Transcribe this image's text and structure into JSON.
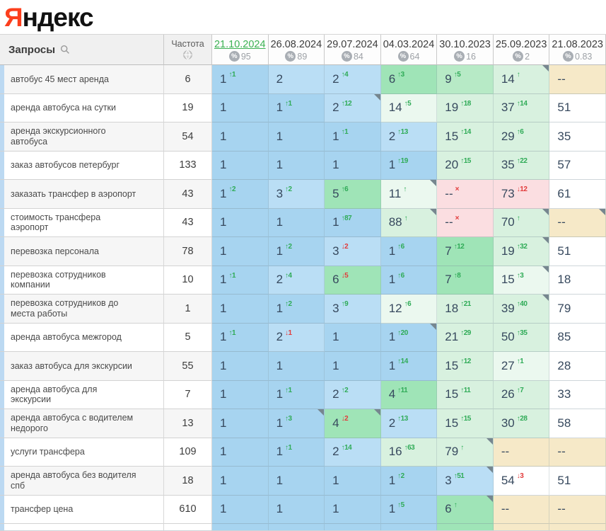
{
  "logo": {
    "first_letter": "Я",
    "rest": "ндекс"
  },
  "table": {
    "queries_header": "Запросы",
    "frequency_header": "Частота",
    "dates": [
      {
        "label": "21.10.2024",
        "percent": "95",
        "selected": true
      },
      {
        "label": "26.08.2024",
        "percent": "89",
        "selected": false
      },
      {
        "label": "29.07.2024",
        "percent": "84",
        "selected": false
      },
      {
        "label": "04.03.2024",
        "percent": "64",
        "selected": false
      },
      {
        "label": "30.10.2023",
        "percent": "16",
        "selected": false
      },
      {
        "label": "25.09.2023",
        "percent": "2",
        "selected": false
      },
      {
        "label": "21.08.2023",
        "percent": "0.83",
        "selected": false
      }
    ],
    "rows": [
      {
        "query": "автобус 45 мест аренда",
        "frequency": "6",
        "cells": [
          {
            "v": "1",
            "d": "↑1",
            "c": "up",
            "bg": "b1"
          },
          {
            "v": "2",
            "bg": "b2"
          },
          {
            "v": "2",
            "d": "↑4",
            "c": "up",
            "bg": "b2"
          },
          {
            "v": "6",
            "d": "↑3",
            "c": "up",
            "bg": "g1"
          },
          {
            "v": "9",
            "d": "↑5",
            "c": "up",
            "bg": "g2"
          },
          {
            "v": "14",
            "d": "↑",
            "c": "up",
            "bg": "g3",
            "f": 1
          },
          {
            "v": "--",
            "bg": "tan"
          }
        ]
      },
      {
        "query": "аренда автобуса на сутки",
        "frequency": "19",
        "cells": [
          {
            "v": "1",
            "bg": "b1"
          },
          {
            "v": "1",
            "d": "↑1",
            "c": "up",
            "bg": "b1"
          },
          {
            "v": "2",
            "d": "↑12",
            "c": "up",
            "bg": "b2",
            "f": 1
          },
          {
            "v": "14",
            "d": "↑5",
            "c": "up",
            "bg": "g4"
          },
          {
            "v": "19",
            "d": "↑18",
            "c": "up",
            "bg": "g3"
          },
          {
            "v": "37",
            "d": "↑14",
            "c": "up",
            "bg": "g3"
          },
          {
            "v": "51",
            "bg": "white"
          }
        ]
      },
      {
        "query": "аренда экскурсионного автобуса",
        "frequency": "54",
        "cells": [
          {
            "v": "1",
            "bg": "b1"
          },
          {
            "v": "1",
            "bg": "b1"
          },
          {
            "v": "1",
            "d": "↑1",
            "c": "up",
            "bg": "b1"
          },
          {
            "v": "2",
            "d": "↑13",
            "c": "up",
            "bg": "b2"
          },
          {
            "v": "15",
            "d": "↑14",
            "c": "up",
            "bg": "g3"
          },
          {
            "v": "29",
            "d": "↑6",
            "c": "up",
            "bg": "g3"
          },
          {
            "v": "35",
            "bg": "white"
          }
        ]
      },
      {
        "query": "заказ автобусов петербург",
        "frequency": "133",
        "cells": [
          {
            "v": "1",
            "bg": "b1"
          },
          {
            "v": "1",
            "bg": "b1"
          },
          {
            "v": "1",
            "bg": "b1"
          },
          {
            "v": "1",
            "d": "↑19",
            "c": "up",
            "bg": "b1"
          },
          {
            "v": "20",
            "d": "↑15",
            "c": "up",
            "bg": "g3"
          },
          {
            "v": "35",
            "d": "↑22",
            "c": "up",
            "bg": "g3"
          },
          {
            "v": "57",
            "bg": "white"
          }
        ]
      },
      {
        "query": "заказать трансфер в аэропорт",
        "frequency": "43",
        "cells": [
          {
            "v": "1",
            "d": "↑2",
            "c": "up",
            "bg": "b1"
          },
          {
            "v": "3",
            "d": "↑2",
            "c": "up",
            "bg": "b2"
          },
          {
            "v": "5",
            "d": "↑6",
            "c": "up",
            "bg": "g1"
          },
          {
            "v": "11",
            "d": "↑",
            "c": "up",
            "bg": "g4",
            "f": 1
          },
          {
            "v": "--",
            "d": "×",
            "c": "down",
            "bg": "pink"
          },
          {
            "v": "73",
            "d": "↓12",
            "c": "down",
            "bg": "pink"
          },
          {
            "v": "61",
            "bg": "white"
          }
        ]
      },
      {
        "query": "стоимость трансфера аэропорт",
        "frequency": "43",
        "cells": [
          {
            "v": "1",
            "bg": "b1"
          },
          {
            "v": "1",
            "bg": "b1"
          },
          {
            "v": "1",
            "d": "↑87",
            "c": "up",
            "bg": "b1"
          },
          {
            "v": "88",
            "d": "↑",
            "c": "up",
            "bg": "g3",
            "f": 1
          },
          {
            "v": "--",
            "d": "×",
            "c": "down",
            "bg": "pink"
          },
          {
            "v": "70",
            "d": "↑",
            "c": "up",
            "bg": "g3",
            "f": 1
          },
          {
            "v": "--",
            "bg": "tan",
            "f": 1
          }
        ]
      },
      {
        "query": "перевозка персонала",
        "frequency": "78",
        "cells": [
          {
            "v": "1",
            "bg": "b1"
          },
          {
            "v": "1",
            "d": "↑2",
            "c": "up",
            "bg": "b1"
          },
          {
            "v": "3",
            "d": "↓2",
            "c": "down",
            "bg": "b2"
          },
          {
            "v": "1",
            "d": "↑6",
            "c": "up",
            "bg": "b1"
          },
          {
            "v": "7",
            "d": "↑12",
            "c": "up",
            "bg": "g1"
          },
          {
            "v": "19",
            "d": "↑32",
            "c": "up",
            "bg": "g3",
            "f": 1
          },
          {
            "v": "51",
            "bg": "white"
          }
        ]
      },
      {
        "query": "перевозка сотрудников компании",
        "frequency": "10",
        "cells": [
          {
            "v": "1",
            "d": "↑1",
            "c": "up",
            "bg": "b1"
          },
          {
            "v": "2",
            "d": "↑4",
            "c": "up",
            "bg": "b2"
          },
          {
            "v": "6",
            "d": "↓5",
            "c": "down",
            "bg": "g1"
          },
          {
            "v": "1",
            "d": "↑6",
            "c": "up",
            "bg": "b1"
          },
          {
            "v": "7",
            "d": "↑8",
            "c": "up",
            "bg": "g1"
          },
          {
            "v": "15",
            "d": "↑3",
            "c": "up",
            "bg": "g4",
            "f": 1
          },
          {
            "v": "18",
            "bg": "white"
          }
        ]
      },
      {
        "query": "перевозка сотрудников до места работы",
        "frequency": "1",
        "cells": [
          {
            "v": "1",
            "bg": "b1"
          },
          {
            "v": "1",
            "d": "↑2",
            "c": "up",
            "bg": "b1"
          },
          {
            "v": "3",
            "d": "↑9",
            "c": "up",
            "bg": "b2"
          },
          {
            "v": "12",
            "d": "↑6",
            "c": "up",
            "bg": "g4"
          },
          {
            "v": "18",
            "d": "↑21",
            "c": "up",
            "bg": "g3"
          },
          {
            "v": "39",
            "d": "↑40",
            "c": "up",
            "bg": "g3",
            "f": 1
          },
          {
            "v": "79",
            "bg": "white"
          }
        ]
      },
      {
        "query": "аренда автобуса межгород",
        "frequency": "5",
        "cells": [
          {
            "v": "1",
            "d": "↑1",
            "c": "up",
            "bg": "b1"
          },
          {
            "v": "2",
            "d": "↓1",
            "c": "down",
            "bg": "b2"
          },
          {
            "v": "1",
            "bg": "b1"
          },
          {
            "v": "1",
            "d": "↑20",
            "c": "up",
            "bg": "b1",
            "f": 1
          },
          {
            "v": "21",
            "d": "↑29",
            "c": "up",
            "bg": "g3"
          },
          {
            "v": "50",
            "d": "↑35",
            "c": "up",
            "bg": "g3"
          },
          {
            "v": "85",
            "bg": "white"
          }
        ]
      },
      {
        "query": "заказ автобуса для экскурсии",
        "frequency": "55",
        "cells": [
          {
            "v": "1",
            "bg": "b1"
          },
          {
            "v": "1",
            "bg": "b1"
          },
          {
            "v": "1",
            "bg": "b1"
          },
          {
            "v": "1",
            "d": "↑14",
            "c": "up",
            "bg": "b1"
          },
          {
            "v": "15",
            "d": "↑12",
            "c": "up",
            "bg": "g3"
          },
          {
            "v": "27",
            "d": "↑1",
            "c": "up",
            "bg": "g4"
          },
          {
            "v": "28",
            "bg": "white"
          }
        ]
      },
      {
        "query": "аренда автобуса для экскурсии",
        "frequency": "7",
        "cells": [
          {
            "v": "1",
            "bg": "b1"
          },
          {
            "v": "1",
            "d": "↑1",
            "c": "up",
            "bg": "b1"
          },
          {
            "v": "2",
            "d": "↑2",
            "c": "up",
            "bg": "b2"
          },
          {
            "v": "4",
            "d": "↑11",
            "c": "up",
            "bg": "g1"
          },
          {
            "v": "15",
            "d": "↑11",
            "c": "up",
            "bg": "g3"
          },
          {
            "v": "26",
            "d": "↑7",
            "c": "up",
            "bg": "g3"
          },
          {
            "v": "33",
            "bg": "white"
          }
        ]
      },
      {
        "query": "аренда автобуса с водителем недорого",
        "frequency": "13",
        "cells": [
          {
            "v": "1",
            "bg": "b1"
          },
          {
            "v": "1",
            "d": "↑3",
            "c": "up",
            "bg": "b1",
            "f": 1
          },
          {
            "v": "4",
            "d": "↓2",
            "c": "down",
            "bg": "g1",
            "f": 1
          },
          {
            "v": "2",
            "d": "↑13",
            "c": "up",
            "bg": "b2"
          },
          {
            "v": "15",
            "d": "↑15",
            "c": "up",
            "bg": "g3"
          },
          {
            "v": "30",
            "d": "↑28",
            "c": "up",
            "bg": "g3"
          },
          {
            "v": "58",
            "bg": "white"
          }
        ]
      },
      {
        "query": "услуги трансфера",
        "frequency": "109",
        "cells": [
          {
            "v": "1",
            "bg": "b1"
          },
          {
            "v": "1",
            "d": "↑1",
            "c": "up",
            "bg": "b1"
          },
          {
            "v": "2",
            "d": "↑14",
            "c": "up",
            "bg": "b2"
          },
          {
            "v": "16",
            "d": "↑63",
            "c": "up",
            "bg": "g3"
          },
          {
            "v": "79",
            "d": "↑",
            "c": "up",
            "bg": "g3",
            "f": 1
          },
          {
            "v": "--",
            "bg": "tan"
          },
          {
            "v": "--",
            "bg": "tan"
          }
        ]
      },
      {
        "query": "аренда автобуса без водителя спб",
        "frequency": "18",
        "cells": [
          {
            "v": "1",
            "bg": "b1"
          },
          {
            "v": "1",
            "bg": "b1"
          },
          {
            "v": "1",
            "bg": "b1"
          },
          {
            "v": "1",
            "d": "↑2",
            "c": "up",
            "bg": "b1"
          },
          {
            "v": "3",
            "d": "↑51",
            "c": "up",
            "bg": "b2",
            "f": 1
          },
          {
            "v": "54",
            "d": "↓3",
            "c": "down",
            "bg": "white"
          },
          {
            "v": "51",
            "bg": "white"
          }
        ]
      },
      {
        "query": "трансфер цена",
        "frequency": "610",
        "cells": [
          {
            "v": "1",
            "bg": "b1"
          },
          {
            "v": "1",
            "bg": "b1"
          },
          {
            "v": "1",
            "bg": "b1"
          },
          {
            "v": "1",
            "d": "↑5",
            "c": "up",
            "bg": "b1"
          },
          {
            "v": "6",
            "d": "↑",
            "c": "up",
            "bg": "g1",
            "f": 1
          },
          {
            "v": "--",
            "bg": "tan"
          },
          {
            "v": "--",
            "bg": "tan"
          }
        ]
      }
    ],
    "partial_row_bgs": [
      "b1",
      "b1",
      "b1",
      "b1",
      "g1",
      "tan",
      "tan"
    ]
  },
  "colors": {
    "b1": "#a7d4f0",
    "b2": "#badef5",
    "g1": "#9fe4b7",
    "g2": "#b7eac6",
    "g3": "#d8f1df",
    "g4": "#ebf8ef",
    "tan": "#f6e9c8",
    "pink": "#fbdee1",
    "white": "#ffffff",
    "delta_up": "#2fab57",
    "delta_down": "#e23b3b",
    "selected_date": "#3cb253"
  }
}
